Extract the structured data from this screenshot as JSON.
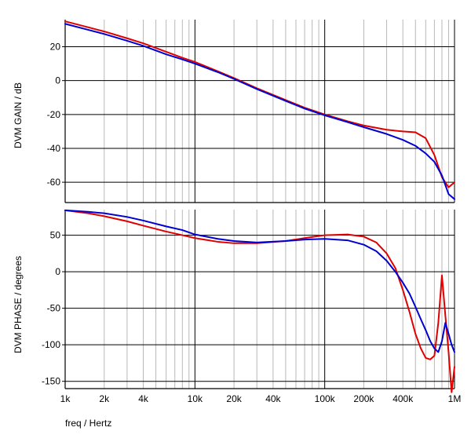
{
  "colors": {
    "series_red": "#e00000",
    "series_blue": "#0000d0",
    "grid_major": "#000000",
    "grid_minor": "#b8b8b8"
  },
  "chart_data": [
    {
      "type": "line",
      "ylabel": "DVM GAIN / dB",
      "xlabel": "",
      "x_scale": "log",
      "xlim": [
        1000,
        1000000
      ],
      "ylim": [
        -72,
        36
      ],
      "yticks": [
        20,
        0,
        -20,
        -40,
        -60
      ],
      "ytick_labels": [
        "20",
        "0",
        "-20",
        "-40",
        "-60"
      ],
      "grid": true,
      "series": [
        {
          "color": "red",
          "x": [
            1000,
            1500,
            2000,
            3000,
            4000,
            6000,
            8000,
            10000,
            15000,
            20000,
            30000,
            50000,
            70000,
            100000,
            150000,
            200000,
            300000,
            400000,
            500000,
            600000,
            700000,
            800000,
            900000,
            1000000
          ],
          "y": [
            35,
            31.5,
            29,
            25,
            22,
            17,
            13.5,
            11,
            5.5,
            1.5,
            -4.5,
            -11.5,
            -16,
            -20,
            -24,
            -26.5,
            -29,
            -30,
            -30.5,
            -34,
            -44,
            -57,
            -63,
            -60
          ]
        },
        {
          "color": "blue",
          "x": [
            1000,
            1500,
            2000,
            3000,
            4000,
            6000,
            8000,
            10000,
            15000,
            20000,
            30000,
            50000,
            70000,
            100000,
            150000,
            200000,
            300000,
            400000,
            500000,
            600000,
            700000,
            800000,
            900000,
            1000000
          ],
          "y": [
            33.5,
            30,
            27.5,
            23.5,
            20.5,
            15.5,
            12.5,
            10,
            5,
            1,
            -5,
            -12,
            -16.5,
            -20.5,
            -24.5,
            -27.5,
            -31.5,
            -35,
            -38.5,
            -43,
            -48,
            -56,
            -67,
            -70
          ]
        }
      ]
    },
    {
      "type": "line",
      "ylabel": "DVM PHASE / degrees",
      "xlabel": "freq / Hertz",
      "x_scale": "log",
      "xlim": [
        1000,
        1000000
      ],
      "ylim": [
        -160,
        85
      ],
      "yticks": [
        50,
        0,
        -50,
        -100,
        -150
      ],
      "ytick_labels": [
        "50",
        "0",
        "-50",
        "-100",
        "-150"
      ],
      "xticks": [
        1000,
        2000,
        4000,
        10000,
        20000,
        40000,
        100000,
        200000,
        400000,
        1000000
      ],
      "xtick_labels": [
        "1k",
        "2k",
        "4k",
        "10k",
        "20k",
        "40k",
        "100k",
        "200k",
        "400k",
        "1M"
      ],
      "grid": true,
      "series": [
        {
          "color": "red",
          "x": [
            1000,
            1500,
            2000,
            3000,
            4000,
            6000,
            8000,
            10000,
            15000,
            20000,
            30000,
            50000,
            70000,
            100000,
            150000,
            200000,
            250000,
            300000,
            350000,
            400000,
            450000,
            500000,
            550000,
            600000,
            650000,
            700000,
            750000,
            800000,
            850000,
            900000,
            950000,
            1000000
          ],
          "y": [
            84,
            80,
            76,
            69,
            63,
            55,
            50,
            46,
            41,
            39,
            39,
            42,
            46,
            50,
            51,
            48,
            40,
            25,
            5,
            -25,
            -55,
            -85,
            -105,
            -118,
            -120,
            -115,
            -70,
            -5,
            -60,
            -110,
            -165,
            -130
          ]
        },
        {
          "color": "blue",
          "x": [
            1000,
            1500,
            2000,
            3000,
            4000,
            6000,
            8000,
            10000,
            15000,
            20000,
            30000,
            50000,
            70000,
            100000,
            150000,
            200000,
            250000,
            300000,
            350000,
            400000,
            450000,
            500000,
            550000,
            600000,
            650000,
            700000,
            750000,
            800000,
            850000,
            900000,
            950000,
            1000000
          ],
          "y": [
            84,
            82,
            80,
            75,
            70,
            62,
            57,
            51,
            45,
            42,
            40,
            42,
            44,
            45,
            43,
            37,
            28,
            15,
            0,
            -15,
            -30,
            -48,
            -65,
            -80,
            -95,
            -105,
            -110,
            -95,
            -70,
            -85,
            -100,
            -110
          ]
        }
      ]
    }
  ]
}
